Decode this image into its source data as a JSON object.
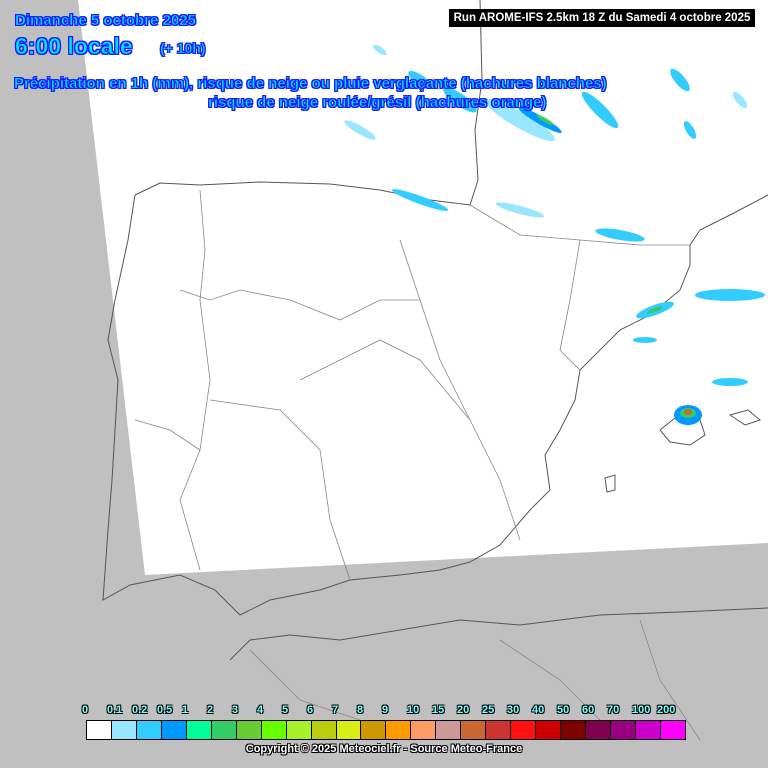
{
  "header": {
    "date": "Dimanche 5 octobre 2025",
    "time": "6:00 locale",
    "lead": "(+ 10h)",
    "title_line1": "Précipitation en 1h (mm), risque de neige ou pluie verglaçante (hachures blanches)",
    "title_line2": "risque de neige roulée/grésil (hachures orange)",
    "run": "Run AROME-IFS 2.5km 18 Z du Samedi 4 octobre 2025"
  },
  "legend": {
    "labels": [
      "0",
      "0.1",
      "0.2",
      "0.5",
      "1",
      "2",
      "3",
      "4",
      "5",
      "6",
      "7",
      "8",
      "9",
      "10",
      "15",
      "20",
      "25",
      "30",
      "40",
      "50",
      "60",
      "70",
      "100",
      "200"
    ],
    "colors": [
      "#ffffff",
      "#99e6ff",
      "#33ccff",
      "#0099ff",
      "#00ff99",
      "#33cc66",
      "#66cc33",
      "#66ff00",
      "#a6f02e",
      "#bbcc11",
      "#d9ee17",
      "#cc9900",
      "#ff9900",
      "#ff9966",
      "#cc9999",
      "#cc6633",
      "#cc3333",
      "#ff1111",
      "#cc0000",
      "#800000",
      "#800050",
      "#990080",
      "#cc00cc",
      "#ff00ff"
    ]
  },
  "copyright": "Copyright © 2025 Meteociel.fr - Source Meteo-France",
  "colors": {
    "outside_domain": "#c0c0c0",
    "domain": "#ffffff",
    "borders": "#555555"
  }
}
